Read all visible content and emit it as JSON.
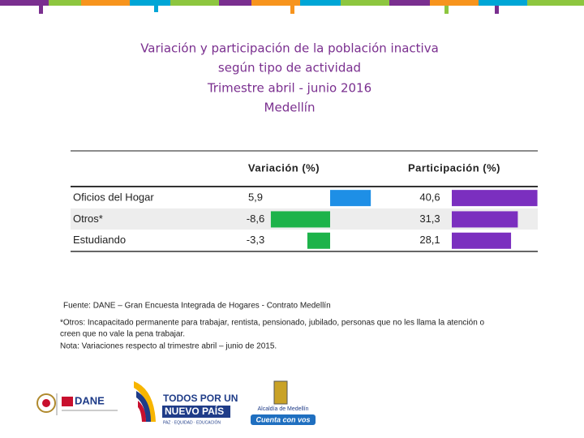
{
  "title": [
    "Variación y participación de la población inactiva",
    "según tipo de actividad",
    "Trimestre abril - junio 2016",
    "Medellín"
  ],
  "table": {
    "headers": [
      "Variación (%)",
      "Participación (%)"
    ],
    "rows": [
      {
        "label": "Oficios del Hogar",
        "variation": {
          "value": 5.9,
          "label": "5,9"
        },
        "participation": {
          "value": 40.6,
          "label": "40,6"
        }
      },
      {
        "label": "Otros*",
        "variation": {
          "value": -8.6,
          "label": "-8,6"
        },
        "participation": {
          "value": 31.3,
          "label": "31,3"
        }
      },
      {
        "label": "Estudiando",
        "variation": {
          "value": -3.3,
          "label": "-3,3"
        },
        "participation": {
          "value": 28.1,
          "label": "28,1"
        }
      }
    ],
    "colors": {
      "positive": "#1e8fe6",
      "negative": "#1db34a",
      "participation": "#7b2fbf"
    }
  },
  "notes": [
    "Fuente: DANE – Gran Encuesta Integrada de Hogares - Contrato Medellín",
    "*Otros: Incapacitado permanente para trabajar, rentista, pensionado, jubilado, personas que no les llama la atención o",
    "creen que no vale la pena trabajar.",
    "Nota: Variaciones respecto al trimestre  abril – junio de 2015."
  ],
  "logos": [
    "DANE",
    "TODOS POR UN",
    "NUEVO PAÍS",
    "PAZ · EQUIDAD · EDUCACIÓN",
    "Alcaldía de Medellín",
    "Cuenta con vos"
  ]
}
